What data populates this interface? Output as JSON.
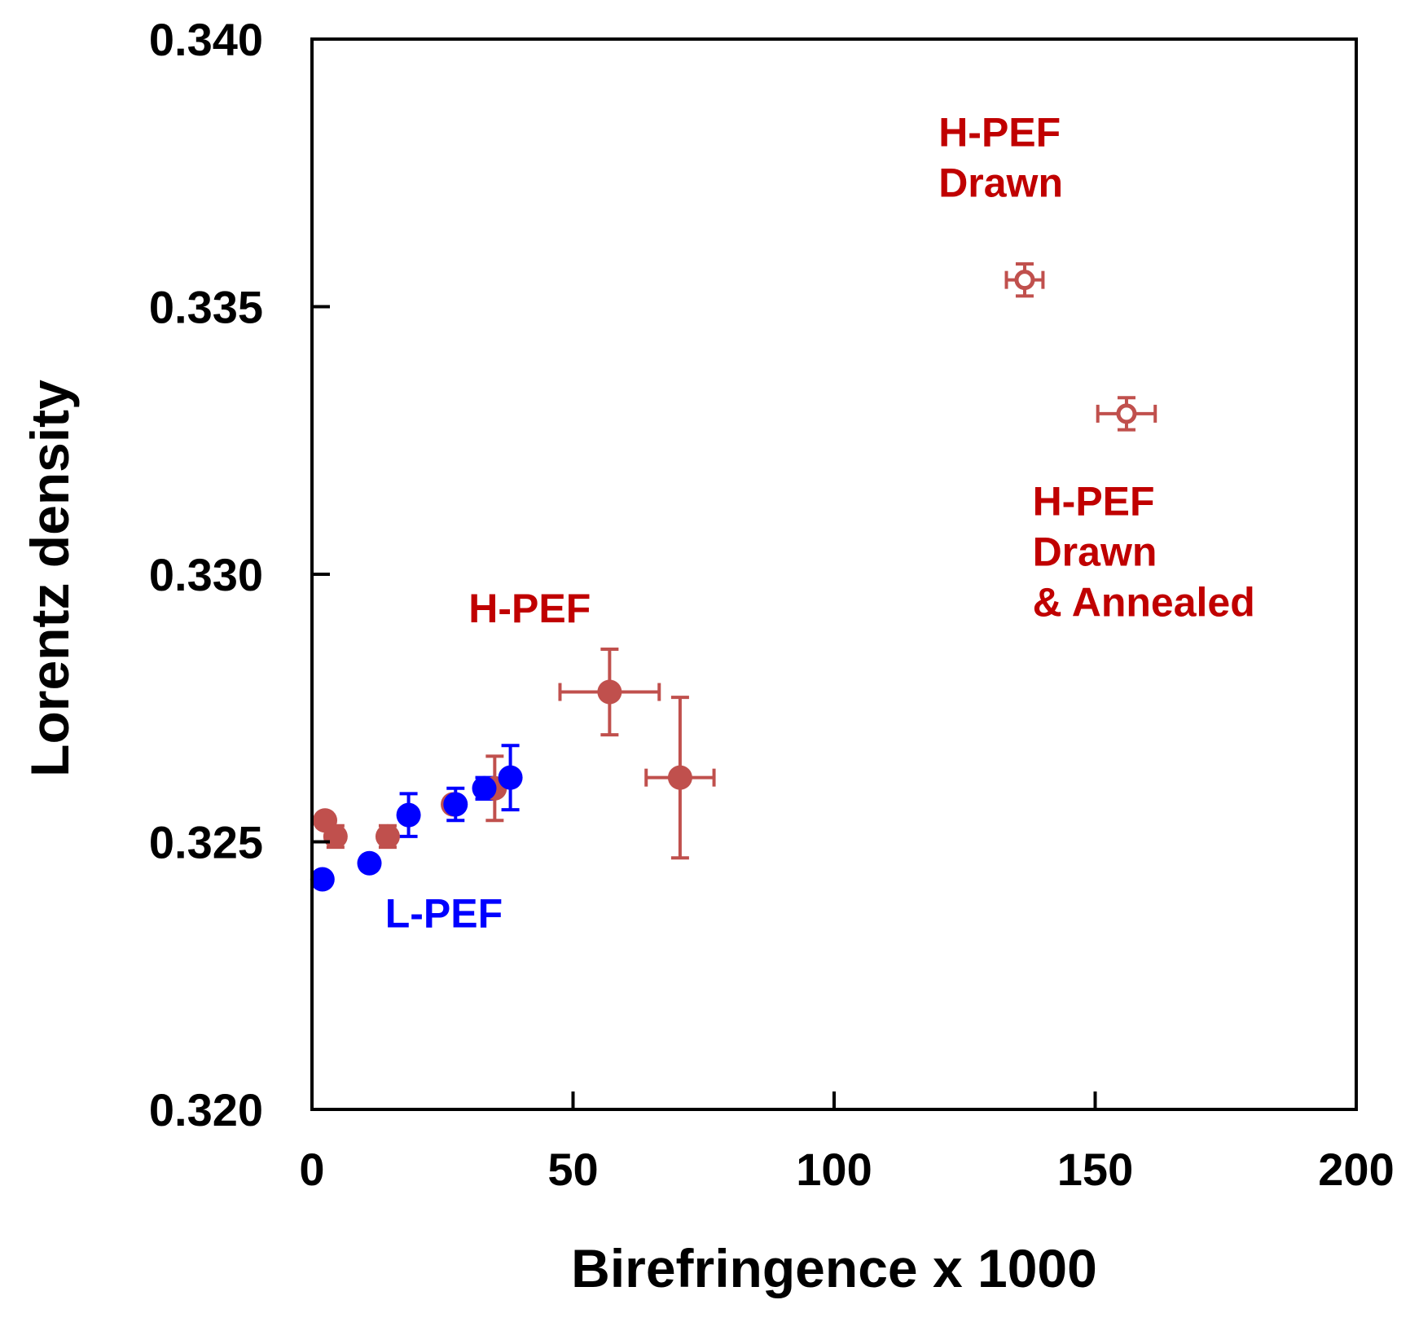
{
  "chart_data": {
    "type": "scatter",
    "title": "",
    "xlabel": "Birefringence x 1000",
    "ylabel": "Lorentz density",
    "xlim": [
      0,
      200
    ],
    "ylim": [
      0.32,
      0.34
    ],
    "x_ticks": [
      0,
      50,
      100,
      150,
      200
    ],
    "y_ticks": [
      0.32,
      0.325,
      0.33,
      0.335,
      0.34
    ],
    "x_tick_labels": [
      "0",
      "50",
      "100",
      "150",
      "200"
    ],
    "y_tick_labels": [
      "0.320",
      "0.325",
      "0.330",
      "0.335",
      "0.340"
    ],
    "grid": false,
    "legend": "none",
    "series": [
      {
        "label": "H-PEF",
        "color": "#c0504d",
        "marker": "filled-circle",
        "points": [
          {
            "x": 2.5,
            "y": 0.3254,
            "yerr": 0
          },
          {
            "x": 4.5,
            "y": 0.3251,
            "yerr": 0.0002
          },
          {
            "x": 14.5,
            "y": 0.3251,
            "yerr": 0.0002
          },
          {
            "x": 27.0,
            "y": 0.3257,
            "yerr": 0
          },
          {
            "x": 35.0,
            "y": 0.326,
            "yerr": 0.0006
          },
          {
            "x": 57.0,
            "y": 0.3278,
            "yerr": 0.0008,
            "xerr": 9.5
          },
          {
            "x": 70.5,
            "y": 0.3262,
            "yerr": 0.0015,
            "xerr": 6.5
          }
        ]
      },
      {
        "label": "L-PEF",
        "color": "#0000ff",
        "marker": "filled-circle",
        "points": [
          {
            "x": 2.0,
            "y": 0.3243,
            "yerr": 0
          },
          {
            "x": 11.0,
            "y": 0.3246,
            "yerr": 0
          },
          {
            "x": 18.5,
            "y": 0.3255,
            "yerr": 0.0004
          },
          {
            "x": 27.5,
            "y": 0.3257,
            "yerr": 0.0003
          },
          {
            "x": 33.0,
            "y": 0.326,
            "yerr": 0.0002
          },
          {
            "x": 38.0,
            "y": 0.3262,
            "yerr": 0.0006
          }
        ]
      },
      {
        "label": "H-PEF Drawn",
        "color": "#c0504d",
        "marker": "open-circle",
        "points": [
          {
            "x": 136.5,
            "y": 0.3355,
            "yerr": 0.0003,
            "xerr": 3.5
          }
        ]
      },
      {
        "label": "H-PEF Drawn & Annealed",
        "color": "#c0504d",
        "marker": "open-circle",
        "points": [
          {
            "x": 156.0,
            "y": 0.333,
            "yerr": 0.0003,
            "xerr": 5.5
          }
        ]
      }
    ],
    "annotations": [
      {
        "lines": [
          "H-PEF",
          "Drawn"
        ],
        "color": "#c00000",
        "anchor": [
          120,
          0.338
        ]
      },
      {
        "lines": [
          "H-PEF",
          "Drawn",
          "& Annealed"
        ],
        "color": "#c00000",
        "anchor": [
          138,
          0.3311
        ]
      },
      {
        "lines": [
          "H-PEF"
        ],
        "color": "#c00000",
        "anchor": [
          30,
          0.3291
        ]
      },
      {
        "lines": [
          "L-PEF"
        ],
        "color": "#0000ff",
        "anchor": [
          14,
          0.3234
        ]
      }
    ]
  }
}
